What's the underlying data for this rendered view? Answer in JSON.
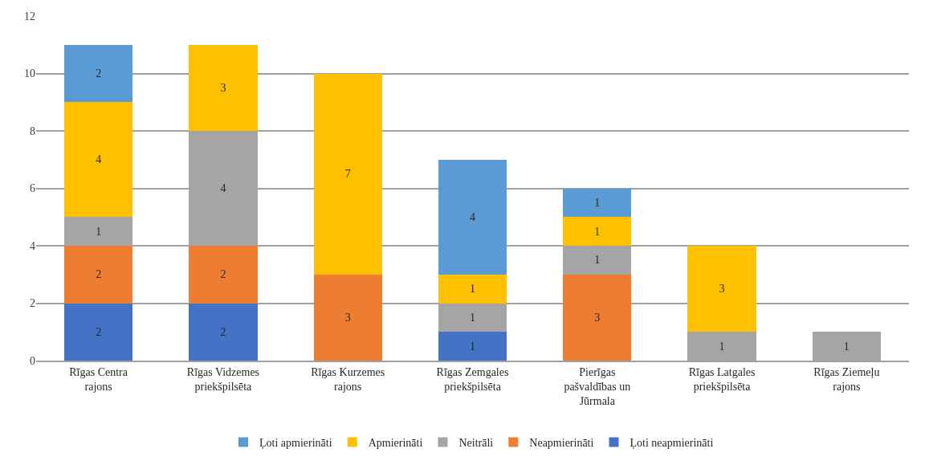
{
  "chart_data": {
    "type": "bar",
    "stacked": true,
    "categories": [
      "Rīgas Centra rajons",
      "Rīgas Vidzemes priekšpilsēta",
      "Rīgas Kurzemes rajons",
      "Rīgas Zemgales priekšpilsēta",
      "Pierīgas pašvaldības un Jūrmala",
      "Rīgas Latgales priekšpilsēta",
      "Rīgas Ziemeļu rajons"
    ],
    "series": [
      {
        "name": "Ļoti neapmierināti",
        "color": "#4472c4",
        "values": [
          2,
          2,
          null,
          1,
          null,
          null,
          null
        ]
      },
      {
        "name": "Neapmierināti",
        "color": "#ed7d31",
        "values": [
          2,
          2,
          3,
          null,
          3,
          null,
          null
        ]
      },
      {
        "name": "Neitrāli",
        "color": "#a5a5a5",
        "values": [
          1,
          4,
          null,
          1,
          1,
          1,
          1
        ]
      },
      {
        "name": "Apmierināti",
        "color": "#ffc000",
        "values": [
          4,
          3,
          7,
          1,
          1,
          3,
          null
        ]
      },
      {
        "name": "Ļoti apmierināti",
        "color": "#5b9bd5",
        "values": [
          2,
          null,
          null,
          4,
          1,
          null,
          null
        ]
      }
    ],
    "ylim": [
      0,
      12
    ],
    "yticks": [
      0,
      2,
      4,
      6,
      8,
      10,
      12
    ],
    "grid": "y",
    "legend": "bottom",
    "data_labels": true
  }
}
